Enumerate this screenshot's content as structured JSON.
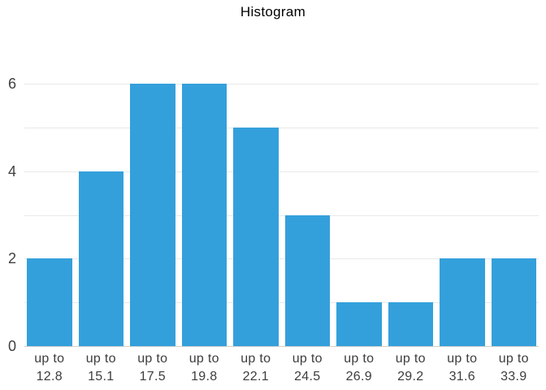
{
  "chart_data": {
    "type": "bar",
    "subtype": "histogram",
    "title": "Histogram",
    "categories": [
      "up to 12.8",
      "up to 15.1",
      "up to 17.5",
      "up to 19.8",
      "up to 22.1",
      "up to 24.5",
      "up to 26.9",
      "up to 29.2",
      "up to 31.6",
      "up to 33.9"
    ],
    "category_label_prefix": "up to",
    "category_upper_bounds": [
      "12.8",
      "15.1",
      "17.5",
      "19.8",
      "22.1",
      "24.5",
      "26.9",
      "29.2",
      "31.6",
      "33.9"
    ],
    "values": [
      2,
      4,
      6,
      6,
      5,
      3,
      1,
      1,
      2,
      2
    ],
    "xlabel": "",
    "ylabel": "",
    "ylim": [
      0,
      6
    ],
    "y_tick_labels": [
      "0",
      "2",
      "4",
      "6"
    ],
    "y_tick_values": [
      0,
      2,
      4,
      6
    ],
    "gridline_values": [
      1,
      2,
      3,
      4,
      5,
      6
    ],
    "grid": true,
    "legend_position": "none",
    "colors": {
      "bar": "#34a0db",
      "grid": "#e8e8e8",
      "axis_line": "#d2d2d2",
      "tick_label": "#404040",
      "title": "#000000"
    }
  }
}
